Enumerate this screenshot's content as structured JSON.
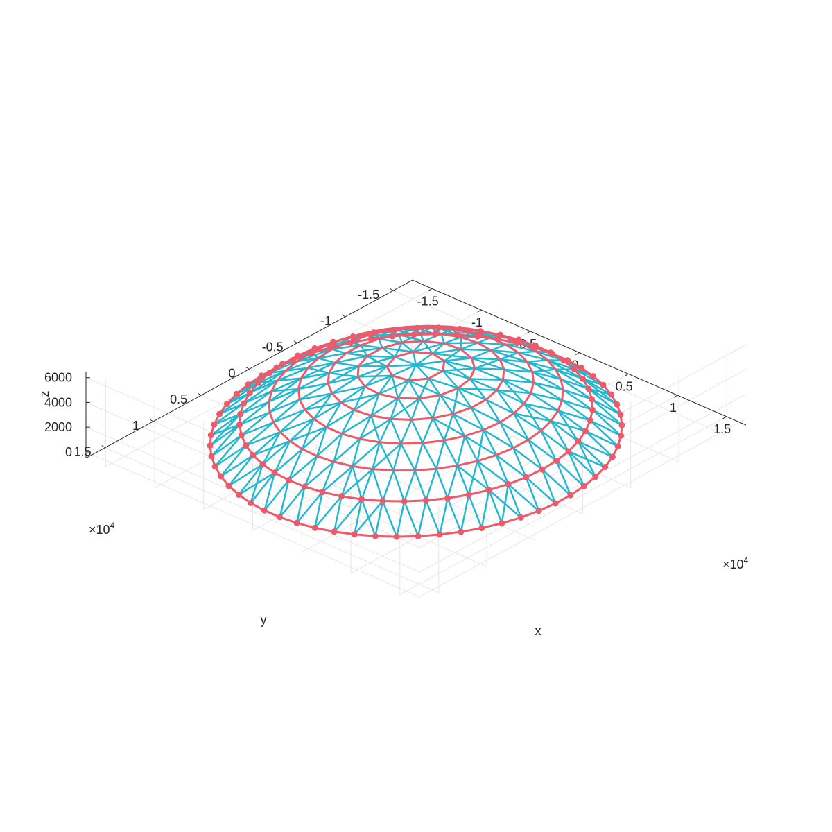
{
  "chart_data": {
    "type": "3d-wireframe",
    "title": "",
    "xlabel": "x",
    "ylabel": "y",
    "zlabel": "z",
    "xlim": [
      -17000,
      17000
    ],
    "ylim": [
      -17000,
      17000
    ],
    "zlim": [
      -500,
      6500
    ],
    "x_exponent": "×10",
    "x_exponent_power": "4",
    "y_exponent": "×10",
    "y_exponent_power": "4",
    "x_ticks": [
      -15000,
      -10000,
      -5000,
      0,
      5000,
      10000,
      15000
    ],
    "x_tick_labels": [
      "-1.5",
      "-1",
      "-0.5",
      "0",
      "0.5",
      "1",
      "1.5"
    ],
    "y_ticks": [
      -15000,
      -10000,
      -5000,
      0,
      5000,
      10000,
      15000
    ],
    "y_tick_labels": [
      "-1.5",
      "-1",
      "-0.5",
      "0",
      "0.5",
      "1",
      "1.5"
    ],
    "z_ticks": [
      0,
      2000,
      4000,
      6000
    ],
    "z_tick_labels": [
      "0",
      "2000",
      "4000",
      "6000"
    ],
    "grid": true,
    "dome": {
      "radius": 15000,
      "height": 5700,
      "rings": 7,
      "nodes_per_ring": 60,
      "base_z": 0
    },
    "series": [
      {
        "color": "#22b8d0"
      },
      {
        "color": "#ec5a6b"
      }
    ]
  }
}
